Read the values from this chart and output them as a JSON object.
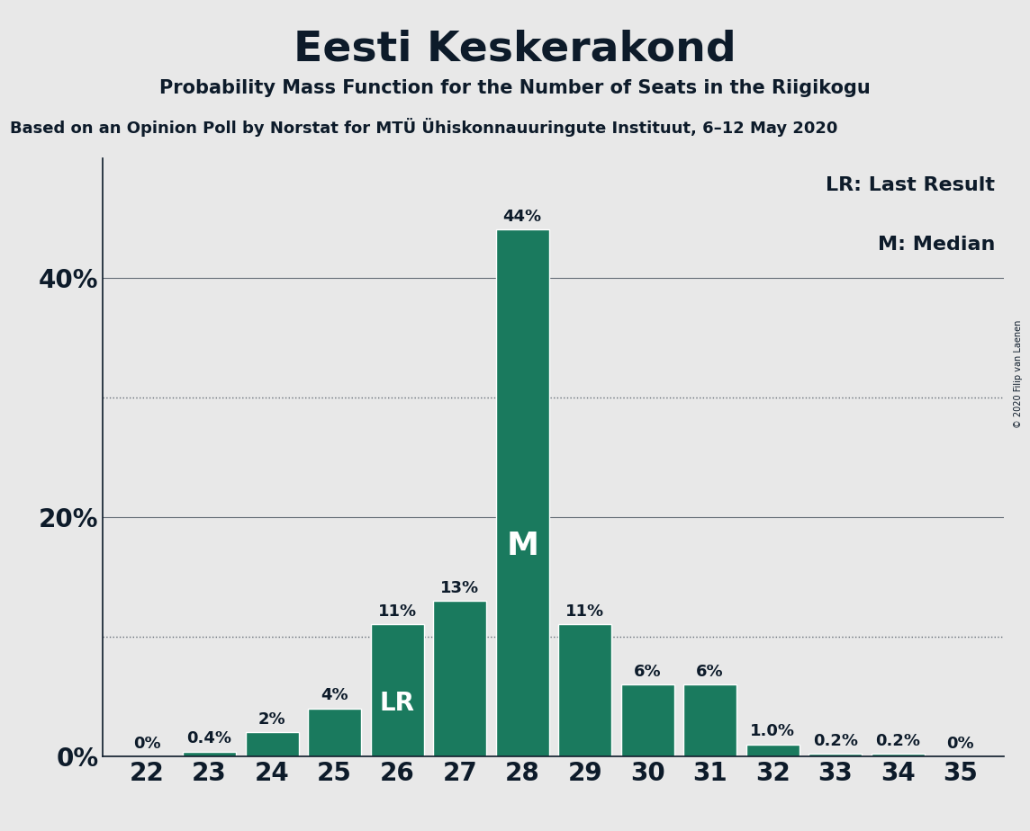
{
  "title": "Eesti Keskerakond",
  "subtitle": "Probability Mass Function for the Number of Seats in the Riigikogu",
  "source": "Based on an Opinion Poll by Norstat for MTÜ Ühiskonnauuringute Instituut, 6–12 May 2020",
  "copyright": "© 2020 Filip van Laenen",
  "seats": [
    22,
    23,
    24,
    25,
    26,
    27,
    28,
    29,
    30,
    31,
    32,
    33,
    34,
    35
  ],
  "probabilities": [
    0.0,
    0.004,
    0.02,
    0.04,
    0.11,
    0.13,
    0.44,
    0.11,
    0.06,
    0.06,
    0.01,
    0.002,
    0.002,
    0.0
  ],
  "labels": [
    "0%",
    "0.4%",
    "2%",
    "4%",
    "11%",
    "13%",
    "44%",
    "11%",
    "6%",
    "6%",
    "1.0%",
    "0.2%",
    "0.2%",
    "0%"
  ],
  "bar_color": "#1a7a5e",
  "background_color": "#e8e8e8",
  "text_color": "#0d1b2a",
  "lr_seat": 26,
  "median_seat": 28,
  "ylim": [
    0,
    0.5
  ],
  "yticks": [
    0.0,
    0.2,
    0.4
  ],
  "ytick_labels": [
    "0%",
    "20%",
    "40%"
  ],
  "dotted_lines": [
    0.1,
    0.3
  ],
  "legend_lr": "LR: Last Result",
  "legend_m": "M: Median"
}
